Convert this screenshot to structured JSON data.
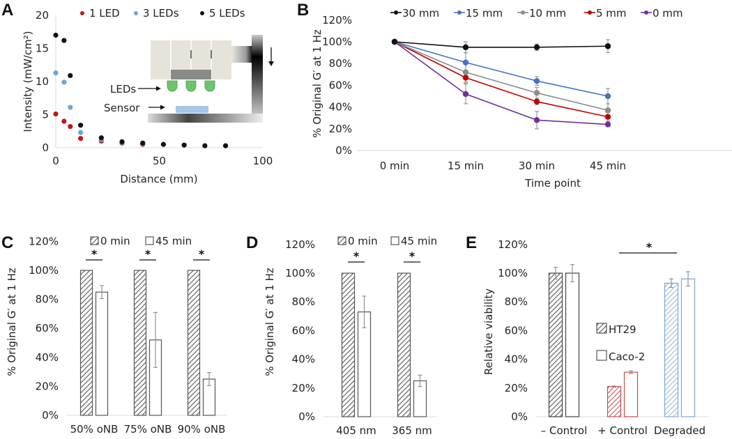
{
  "figure": {
    "panel_letters": [
      "A",
      "B",
      "C",
      "D",
      "E"
    ]
  },
  "chart_data": [
    {
      "panel": "A",
      "type": "scatter",
      "title": "",
      "xlabel": "Distance (mm)",
      "ylabel": "Intensity (mW/cm²)",
      "xlim": [
        0,
        100
      ],
      "ylim": [
        0,
        20
      ],
      "xticks": [
        "0",
        "50",
        "100"
      ],
      "yticks": [
        "0",
        "5",
        "10",
        "15",
        "20"
      ],
      "legend": "top",
      "series": [
        {
          "name": "1 LED",
          "color": "#c0171c",
          "x": [
            0,
            4,
            7,
            12,
            22,
            32,
            42
          ],
          "y": [
            5.1,
            4.0,
            3.2,
            1.4,
            1.0,
            0.7,
            0.5
          ]
        },
        {
          "name": "3 LEDs",
          "color": "#6aa6d6",
          "x": [
            0,
            4,
            7,
            12,
            22,
            32,
            42
          ],
          "y": [
            11.3,
            9.9,
            6.1,
            2.3,
            1.2,
            0.8,
            0.6
          ]
        },
        {
          "name": "5 LEDs",
          "color": "#111111",
          "x": [
            0,
            4,
            7,
            12,
            22,
            32,
            42,
            52,
            62,
            72,
            82
          ],
          "y": [
            17.0,
            16.2,
            10.9,
            3.4,
            1.5,
            0.9,
            0.7,
            0.5,
            0.4,
            0.3,
            0.3
          ]
        }
      ],
      "inset": {
        "labels": [
          "LEDs",
          "Sensor"
        ]
      }
    },
    {
      "panel": "B",
      "type": "line",
      "title": "",
      "xlabel": "Time point",
      "ylabel": "% Original G′ at 1 Hz",
      "categories": [
        "0 min",
        "15 min",
        "30 min",
        "45 min"
      ],
      "ylim": [
        0,
        120
      ],
      "yticks": [
        "0%",
        "20%",
        "40%",
        "60%",
        "80%",
        "100%",
        "120%"
      ],
      "legend": "top",
      "series": [
        {
          "name": "30 mm",
          "color": "#111111",
          "values": [
            100,
            95,
            95,
            96
          ],
          "errors": [
            0,
            5,
            3,
            6
          ]
        },
        {
          "name": "15 mm",
          "color": "#4472c4",
          "values": [
            100,
            81,
            64,
            50
          ],
          "errors": [
            0,
            9,
            4,
            7
          ]
        },
        {
          "name": "10 mm",
          "color": "#8c8c8c",
          "values": [
            100,
            72,
            53,
            37
          ],
          "errors": [
            0,
            9,
            5,
            6
          ]
        },
        {
          "name": "5 mm",
          "color": "#c00000",
          "values": [
            100,
            67,
            45,
            31
          ],
          "errors": [
            0,
            5,
            3,
            4
          ]
        },
        {
          "name": "0 mm",
          "color": "#7030a0",
          "values": [
            100,
            52,
            28,
            24
          ],
          "errors": [
            0,
            9,
            8,
            2
          ]
        }
      ]
    },
    {
      "panel": "C",
      "type": "bar",
      "title": "",
      "xlabel": "",
      "ylabel": "% Original G′ at 1 Hz",
      "categories": [
        "50% oNB",
        "75% oNB",
        "90% oNB"
      ],
      "ylim": [
        0,
        120
      ],
      "yticks": [
        "0%",
        "20%",
        "40%",
        "60%",
        "80%",
        "100%",
        "120%"
      ],
      "legend": "top",
      "series": [
        {
          "name": "0 min",
          "pattern": "hatched",
          "values": [
            100,
            100,
            100
          ],
          "errors": [
            0,
            0,
            0
          ]
        },
        {
          "name": "45 min",
          "pattern": "open",
          "values": [
            85,
            52,
            25
          ],
          "errors": [
            4.5,
            19,
            4.5
          ]
        }
      ],
      "significance": [
        "*",
        "*",
        "*"
      ]
    },
    {
      "panel": "D",
      "type": "bar",
      "title": "",
      "xlabel": "",
      "ylabel": "% Original G′ at 1 Hz",
      "categories": [
        "405 nm",
        "365 nm"
      ],
      "ylim": [
        0,
        120
      ],
      "yticks": [
        "0%",
        "20%",
        "40%",
        "60%",
        "80%",
        "100%",
        "120%"
      ],
      "legend": "top",
      "series": [
        {
          "name": "0 min",
          "pattern": "hatched",
          "values": [
            100,
            100
          ],
          "errors": [
            0,
            0
          ]
        },
        {
          "name": "45 min",
          "pattern": "open",
          "values": [
            73,
            25
          ],
          "errors": [
            11,
            4
          ]
        }
      ],
      "significance": [
        "*",
        "*"
      ]
    },
    {
      "panel": "E",
      "type": "bar",
      "title": "",
      "xlabel": "",
      "ylabel": "Relative viability",
      "categories": [
        "– Control",
        "+ Control",
        "Degraded"
      ],
      "category_colors": [
        "#444444",
        "#c0504d",
        "#7ea6d4"
      ],
      "ylim": [
        0,
        120
      ],
      "yticks": [
        "0%",
        "20%",
        "40%",
        "60%",
        "80%",
        "100%",
        "120%"
      ],
      "legend": "center",
      "series": [
        {
          "name": "HT29",
          "pattern": "hatched",
          "values": [
            100,
            21,
            93
          ],
          "errors": [
            4,
            0.4,
            3
          ]
        },
        {
          "name": "Caco-2",
          "pattern": "open",
          "values": [
            100,
            31,
            96
          ],
          "errors": [
            6,
            1,
            5
          ]
        }
      ],
      "significance": [
        "*"
      ]
    }
  ]
}
